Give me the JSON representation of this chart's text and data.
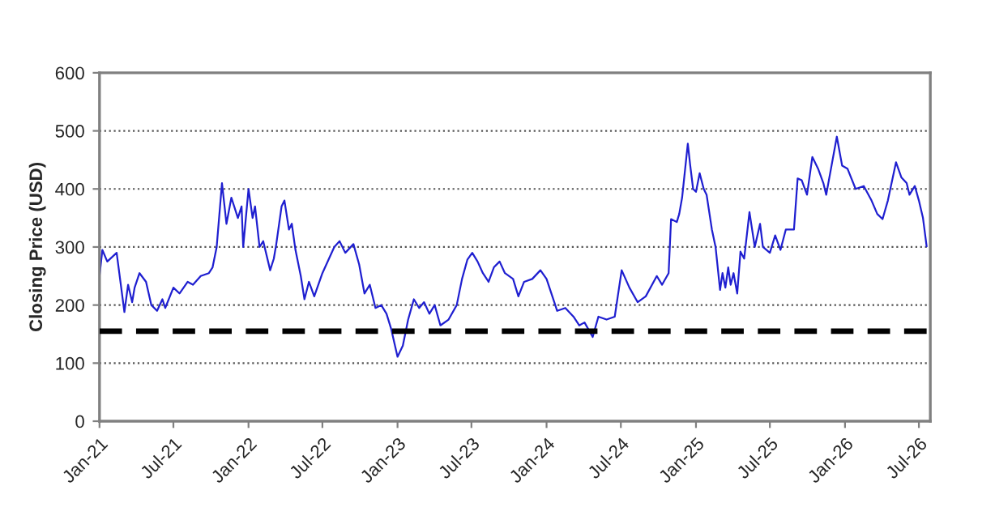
{
  "chart_data": {
    "type": "line",
    "ylabel": "Closing Price (USD)",
    "ylim": [
      0,
      600
    ],
    "yticks": [
      0,
      100,
      200,
      300,
      400,
      500,
      600
    ],
    "xlim": [
      "2021-01-01",
      "2026-07-29"
    ],
    "xticks": [
      {
        "value": "2021-01-01",
        "label": "Jan-21"
      },
      {
        "value": "2021-07-01",
        "label": "Jul-21"
      },
      {
        "value": "2022-01-01",
        "label": "Jan-22"
      },
      {
        "value": "2022-07-01",
        "label": "Jul-22"
      },
      {
        "value": "2023-01-01",
        "label": "Jan-23"
      },
      {
        "value": "2023-07-01",
        "label": "Jul-23"
      },
      {
        "value": "2024-01-01",
        "label": "Jan-24"
      },
      {
        "value": "2024-07-01",
        "label": "Jul-24"
      },
      {
        "value": "2025-01-01",
        "label": "Jan-25"
      },
      {
        "value": "2025-07-01",
        "label": "Jul-25"
      },
      {
        "value": "2026-01-01",
        "label": "Jan-26"
      },
      {
        "value": "2026-07-01",
        "label": "Jul-26"
      }
    ],
    "grid": "y",
    "legend": false,
    "marker": "none",
    "line_style": "solid",
    "ref_lines": [
      {
        "axis": "y",
        "value": 155,
        "color": "#000000",
        "line_style": "dashed"
      }
    ],
    "series": [
      {
        "color": "#1f1fd0",
        "x": [
          "2021-01-01",
          "2021-01-08",
          "2021-01-20",
          "2021-02-12",
          "2021-03-03",
          "2021-03-12",
          "2021-03-22",
          "2021-03-28",
          "2021-04-09",
          "2021-04-25",
          "2021-05-08",
          "2021-05-22",
          "2021-06-04",
          "2021-06-11",
          "2021-07-01",
          "2021-07-16",
          "2021-08-05",
          "2021-08-18",
          "2021-09-06",
          "2021-09-26",
          "2021-10-05",
          "2021-10-15",
          "2021-10-28",
          "2021-11-08",
          "2021-11-20",
          "2021-12-06",
          "2021-12-15",
          "2021-12-19",
          "2022-01-01",
          "2022-01-11",
          "2022-01-17",
          "2022-01-28",
          "2022-02-06",
          "2022-02-23",
          "2022-03-04",
          "2022-03-10",
          "2022-03-23",
          "2022-03-30",
          "2022-04-10",
          "2022-04-17",
          "2022-04-26",
          "2022-05-09",
          "2022-05-18",
          "2022-05-29",
          "2022-06-11",
          "2022-07-01",
          "2022-07-30",
          "2022-08-12",
          "2022-08-26",
          "2022-09-15",
          "2022-09-29",
          "2022-10-12",
          "2022-10-25",
          "2022-11-08",
          "2022-11-22",
          "2022-12-05",
          "2022-12-16",
          "2023-01-01",
          "2023-01-14",
          "2023-01-27",
          "2023-02-10",
          "2023-02-23",
          "2023-03-07",
          "2023-03-20",
          "2023-04-02",
          "2023-04-16",
          "2023-05-06",
          "2023-05-26",
          "2023-06-08",
          "2023-06-21",
          "2023-07-03",
          "2023-07-16",
          "2023-07-29",
          "2023-08-12",
          "2023-08-25",
          "2023-09-08",
          "2023-09-21",
          "2023-10-11",
          "2023-10-24",
          "2023-11-07",
          "2023-11-27",
          "2023-12-17",
          "2024-01-01",
          "2024-01-20",
          "2024-01-27",
          "2024-02-16",
          "2024-03-07",
          "2024-03-21",
          "2024-04-03",
          "2024-04-23",
          "2024-05-07",
          "2024-05-27",
          "2024-06-16",
          "2024-07-03",
          "2024-07-22",
          "2024-08-11",
          "2024-08-31",
          "2024-09-27",
          "2024-10-10",
          "2024-10-26",
          "2024-11-01",
          "2024-11-15",
          "2024-11-21",
          "2024-11-28",
          "2024-12-12",
          "2024-12-18",
          "2024-12-25",
          "2025-01-01",
          "2025-01-10",
          "2025-01-20",
          "2025-01-27",
          "2025-02-09",
          "2025-02-18",
          "2025-03-01",
          "2025-03-07",
          "2025-03-14",
          "2025-03-21",
          "2025-03-27",
          "2025-04-03",
          "2025-04-12",
          "2025-04-20",
          "2025-04-29",
          "2025-05-12",
          "2025-05-25",
          "2025-06-07",
          "2025-06-14",
          "2025-07-01",
          "2025-07-14",
          "2025-07-27",
          "2025-08-09",
          "2025-08-29",
          "2025-09-07",
          "2025-09-17",
          "2025-09-30",
          "2025-10-13",
          "2025-10-27",
          "2025-11-09",
          "2025-11-16",
          "2025-11-29",
          "2025-12-12",
          "2025-12-25",
          "2026-01-07",
          "2026-01-27",
          "2026-02-16",
          "2026-03-07",
          "2026-03-21",
          "2026-04-03",
          "2026-04-16",
          "2026-05-06",
          "2026-05-19",
          "2026-06-01",
          "2026-06-08",
          "2026-06-21",
          "2026-07-01",
          "2026-07-11",
          "2026-07-20"
        ],
        "values": [
          250,
          295,
          275,
          290,
          188,
          235,
          205,
          230,
          255,
          240,
          200,
          190,
          210,
          195,
          230,
          220,
          240,
          235,
          250,
          255,
          265,
          300,
          410,
          340,
          385,
          350,
          370,
          300,
          400,
          350,
          370,
          300,
          310,
          260,
          280,
          305,
          370,
          380,
          330,
          340,
          295,
          250,
          210,
          240,
          215,
          255,
          300,
          310,
          290,
          305,
          270,
          220,
          235,
          195,
          200,
          185,
          160,
          111,
          130,
          175,
          210,
          195,
          205,
          185,
          200,
          165,
          175,
          200,
          245,
          278,
          290,
          275,
          255,
          240,
          265,
          275,
          255,
          245,
          215,
          240,
          245,
          260,
          245,
          205,
          190,
          195,
          180,
          165,
          170,
          145,
          180,
          175,
          180,
          260,
          230,
          205,
          215,
          250,
          235,
          255,
          348,
          343,
          357,
          385,
          478,
          440,
          400,
          395,
          427,
          400,
          390,
          330,
          300,
          226,
          255,
          230,
          265,
          235,
          255,
          220,
          292,
          280,
          360,
          300,
          340,
          300,
          290,
          320,
          295,
          330,
          330,
          418,
          415,
          390,
          455,
          435,
          410,
          390,
          440,
          490,
          440,
          435,
          400,
          405,
          380,
          357,
          348,
          380,
          446,
          420,
          410,
          390,
          405,
          380,
          350,
          301
        ]
      }
    ]
  }
}
